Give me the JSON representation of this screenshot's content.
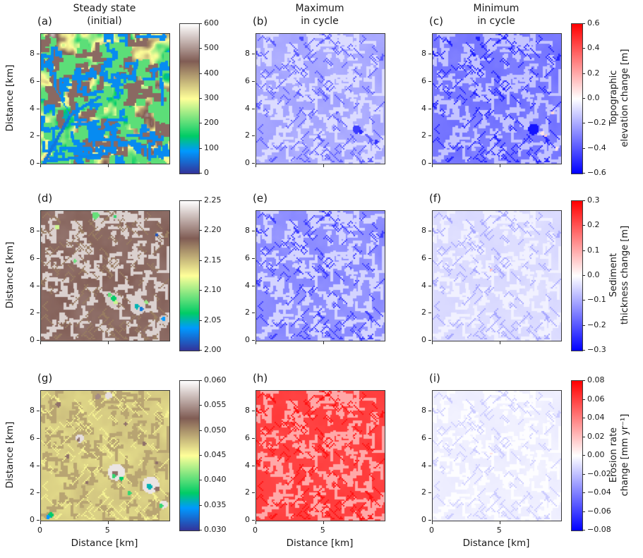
{
  "figure": {
    "background": "#ffffff",
    "column_titles": [
      [
        "Steady state",
        "(initial)"
      ],
      [
        "Maximum",
        "in cycle"
      ],
      [
        "Minimum",
        "in cycle"
      ]
    ],
    "text_color": "#1a1a1a"
  },
  "chart_data": {
    "type": "heatmap",
    "grid": "3 rows x 3 columns, panels (a)-(i)",
    "x_axis": {
      "label": "Distance [km]",
      "range": [
        0,
        9.5
      ],
      "ticks": [
        0,
        5
      ]
    },
    "y_axis": {
      "label": "Distance [km]",
      "range": [
        0,
        9.5
      ],
      "ticks": [
        0,
        2,
        4,
        6,
        8
      ]
    },
    "colormaps": {
      "terrain": {
        "stops": [
          [
            0.0,
            "#333399"
          ],
          [
            0.15,
            "#0099ff"
          ],
          [
            0.25,
            "#00cc66"
          ],
          [
            0.5,
            "#ffff99"
          ],
          [
            0.75,
            "#805c54"
          ],
          [
            1.0,
            "#ffffff"
          ]
        ]
      },
      "bwr": {
        "stops": [
          [
            0.0,
            "#0000ff"
          ],
          [
            0.5,
            "#ffffff"
          ],
          [
            1.0,
            "#ff0000"
          ]
        ]
      }
    },
    "rows": [
      {
        "name": "topographic-elevation",
        "left_colorbar": {
          "colormap": "terrain",
          "min": 0,
          "max": 600,
          "tick_values": [
            600,
            500,
            400,
            300,
            200,
            100,
            0
          ],
          "tick_labels": [
            "600",
            "500",
            "400",
            "300",
            "200",
            "100",
            "0"
          ]
        },
        "right_colorbar": {
          "colormap": "bwr",
          "min": -0.6,
          "max": 0.6,
          "tick_values": [
            0.6,
            0.4,
            0.2,
            0.0,
            -0.2,
            -0.4,
            -0.6
          ],
          "tick_labels": [
            "0.6",
            "0.4",
            "0.2",
            "0.0",
            "−0.2",
            "−0.4",
            "−0.6"
          ],
          "label_lines": [
            "Topographic",
            "elevation change [m]"
          ]
        }
      },
      {
        "name": "sediment-thickness",
        "left_colorbar": {
          "colormap": "terrain",
          "min": 2.0,
          "max": 2.25,
          "tick_values": [
            2.25,
            2.2,
            2.15,
            2.1,
            2.05,
            2.0
          ],
          "tick_labels": [
            "2.25",
            "2.20",
            "2.15",
            "2.10",
            "2.05",
            "2.00"
          ]
        },
        "right_colorbar": {
          "colormap": "bwr",
          "min": -0.3,
          "max": 0.3,
          "tick_values": [
            0.3,
            0.2,
            0.1,
            0.0,
            -0.1,
            -0.2,
            -0.3
          ],
          "tick_labels": [
            "0.3",
            "0.2",
            "0.1",
            "0.0",
            "−0.1",
            "−0.2",
            "−0.3"
          ],
          "label_lines": [
            "Sediment",
            "thickness change [m]"
          ]
        }
      },
      {
        "name": "erosion-rate",
        "left_colorbar": {
          "colormap": "terrain",
          "min": 0.03,
          "max": 0.06,
          "tick_values": [
            0.06,
            0.055,
            0.05,
            0.045,
            0.04,
            0.035,
            0.03
          ],
          "tick_labels": [
            "0.060",
            "0.055",
            "0.050",
            "0.045",
            "0.040",
            "0.035",
            "0.030"
          ]
        },
        "right_colorbar": {
          "colormap": "bwr",
          "min": -0.08,
          "max": 0.08,
          "tick_values": [
            0.08,
            0.06,
            0.04,
            0.02,
            0.0,
            -0.02,
            -0.04,
            -0.06,
            -0.08
          ],
          "tick_labels": [
            "0.08",
            "0.06",
            "0.04",
            "0.02",
            "0.00",
            "−0.02",
            "−0.04",
            "−0.06",
            "−0.08"
          ],
          "label_lines": [
            "Erosion rate",
            "change [mm yr⁻¹]"
          ]
        }
      }
    ],
    "panels": [
      {
        "id": "a",
        "row": 0,
        "col": 0,
        "label": "(a)",
        "colormap": "terrain",
        "description": "Steady-state (initial) elevation 0-600 m: green/yellow valleys, brown ridges, blue dendritic channels from lower-left",
        "render": {
          "style": "terrain",
          "base": 0.5,
          "range": 0.6,
          "aura": 0.34,
          "ridges": 0.77,
          "net": 0.13,
          "netCount": 55,
          "paths": [
            [
              0.02,
              0.02,
              0.22,
              0.38,
              2,
              0.1
            ],
            [
              0.22,
              0.38,
              0.45,
              0.52,
              2,
              0.12
            ],
            [
              0.02,
              0.02,
              0.5,
              0.08,
              2,
              0.12
            ],
            [
              0.22,
              0.38,
              0.1,
              0.6,
              1,
              0.14
            ]
          ],
          "spots": []
        }
      },
      {
        "id": "b",
        "row": 0,
        "col": 1,
        "label": "(b)",
        "colormap": "bwr",
        "description": "Maximum topographic elevation change in cycle, uniformly slightly negative (~-0.2 m, light blue-violet) with darker blue pockets near (7.5,2.7) km",
        "render": {
          "style": "net",
          "base": 0.33,
          "noise": 0.025,
          "net": 0.43,
          "netCount": 110,
          "specks": 0.18,
          "spots": [
            [
              0.78,
              0.27,
              3,
              0.12
            ],
            [
              0.81,
              0.25,
              1.5,
              0.08
            ],
            [
              0.93,
              0.17,
              1.5,
              0.1
            ],
            [
              0.35,
              0.97,
              1.5,
              0.15
            ],
            [
              0.62,
              0.4,
              1,
              0.17
            ],
            [
              0.63,
              0.34,
              1,
              0.17
            ]
          ]
        }
      },
      {
        "id": "c",
        "row": 0,
        "col": 2,
        "label": "(c)",
        "colormap": "bwr",
        "description": "Minimum topographic elevation change in cycle, ~-0.3 to -0.4 m (medium blue), deep-blue pocket near (7.5,2.7) km with tiny red spots",
        "render": {
          "style": "net",
          "base": 0.235,
          "noise": 0.03,
          "net": 0.385,
          "netCount": 110,
          "specks": 0.07,
          "spots": [
            [
              0.78,
              0.27,
              4,
              0.04
            ],
            [
              0.85,
              0.24,
              1.5,
              0.55
            ],
            [
              0.88,
              0.22,
              1,
              0.6
            ],
            [
              0.93,
              0.4,
              1,
              0.58
            ],
            [
              0.35,
              0.97,
              1.5,
              0.06
            ],
            [
              0.96,
              0.12,
              1.2,
              0.55
            ]
          ]
        }
      },
      {
        "id": "d",
        "row": 1,
        "col": 0,
        "label": "(d)",
        "colormap": "terrain",
        "description": "Steady-state sediment thickness ~2.18-2.22 m (brown) with near-2.25 m white channel network and sparse thin (2.0-2.1 m, blue/green) spots",
        "render": {
          "style": "net",
          "base": 0.77,
          "noise": 0.025,
          "net": 0.93,
          "netCount": 95,
          "specks": 0.7,
          "spots": [
            [
              0.55,
              0.32,
              5,
              0.92
            ],
            [
              0.56,
              0.33,
              2,
              0.25
            ],
            [
              0.58,
              0.3,
              1.5,
              0.45
            ],
            [
              0.53,
              0.36,
              1.5,
              0.35
            ],
            [
              0.75,
              0.27,
              6,
              0.93
            ],
            [
              0.74,
              0.27,
              2,
              0.2
            ],
            [
              0.78,
              0.25,
              1.5,
              0.1
            ],
            [
              0.82,
              0.3,
              1.5,
              0.4
            ],
            [
              0.95,
              0.17,
              3,
              0.92
            ],
            [
              0.95,
              0.17,
              1.5,
              0.15
            ],
            [
              0.27,
              0.62,
              3,
              0.92
            ],
            [
              0.26,
              0.62,
              1.3,
              0.35
            ],
            [
              0.42,
              0.97,
              2.5,
              0.35
            ],
            [
              0.58,
              0.96,
              2.5,
              0.92
            ],
            [
              0.57,
              0.96,
              1.2,
              0.3
            ],
            [
              0.12,
              0.88,
              1.5,
              0.45
            ],
            [
              0.9,
              0.82,
              1,
              0.05
            ]
          ]
        }
      },
      {
        "id": "e",
        "row": 1,
        "col": 1,
        "label": "(e)",
        "colormap": "bwr",
        "description": "Maximum sediment thickness change in cycle, ~-0.13 m (medium blue-violet) over whole domain",
        "render": {
          "style": "net",
          "base": 0.28,
          "noise": 0.03,
          "net": 0.415,
          "netCount": 115,
          "specks": 0.12,
          "spots": []
        }
      },
      {
        "id": "f",
        "row": 1,
        "col": 2,
        "label": "(f)",
        "colormap": "bwr",
        "description": "Minimum sediment thickness change in cycle, ~-0.04 m (very light lavender), one tiny red dot near (4.3,5.2) km",
        "render": {
          "style": "net",
          "base": 0.43,
          "noise": 0.015,
          "net": 0.472,
          "netCount": 100,
          "specks": 0.33,
          "spots": [
            [
              0.45,
              0.55,
              0.8,
              0.62
            ]
          ]
        }
      },
      {
        "id": "g",
        "row": 1,
        "col": 0,
        "label": "(g)",
        "colormap": "terrain",
        "row_override": 2,
        "description": "Steady-state erosion rate ~0.048 mm/yr (olive-tan) with brown/white high-rate patches and few blue-green low spots",
        "render": {
          "style": "net",
          "base": 0.575,
          "noise": 0.035,
          "net": 0.64,
          "netCount": 90,
          "specks": 0.52,
          "spots": [
            [
              0.58,
              0.38,
              6,
              0.96
            ],
            [
              0.57,
              0.37,
              2,
              0.78
            ],
            [
              0.56,
              0.35,
              1.5,
              0.3
            ],
            [
              0.62,
              0.33,
              1.5,
              0.25
            ],
            [
              0.85,
              0.28,
              6,
              0.96
            ],
            [
              0.84,
              0.27,
              2,
              0.2
            ],
            [
              0.9,
              0.25,
              2,
              0.78
            ],
            [
              0.95,
              0.13,
              3,
              0.96
            ],
            [
              0.93,
              0.12,
              1.5,
              0.3
            ],
            [
              0.3,
              0.64,
              3,
              0.95
            ],
            [
              0.29,
              0.63,
              1.2,
              0.78
            ],
            [
              0.52,
              0.97,
              2.5,
              0.95
            ],
            [
              0.44,
              0.96,
              2,
              0.82
            ],
            [
              0.13,
              0.9,
              2,
              0.78
            ],
            [
              0.07,
              0.05,
              2,
              0.25
            ],
            [
              0.05,
              0.03,
              1.5,
              0.15
            ],
            [
              0.68,
              0.22,
              1.5,
              0.3
            ],
            [
              0.2,
              0.5,
              1.5,
              0.78
            ],
            [
              0.8,
              0.6,
              1.5,
              0.78
            ],
            [
              0.35,
              0.3,
              1.2,
              0.78
            ],
            [
              0.65,
              0.75,
              1.2,
              0.78
            ],
            [
              0.9,
              0.45,
              1,
              0.78
            ]
          ]
        }
      },
      {
        "id": "h",
        "row": 2,
        "col": 1,
        "label": "(h)",
        "colormap": "bwr",
        "description": "Maximum erosion-rate change in cycle, strongly positive ~+0.06 mm/yr (red) with pink channel network",
        "render": {
          "style": "net",
          "base": 0.875,
          "noise": 0.02,
          "net": 0.67,
          "netCount": 110,
          "specks": 0.965,
          "spots": []
        }
      },
      {
        "id": "i",
        "row": 2,
        "col": 2,
        "label": "(i)",
        "colormap": "bwr",
        "description": "Minimum erosion-rate change in cycle, near zero / faintly negative (near-white with pale blue network)",
        "render": {
          "style": "net",
          "base": 0.468,
          "noise": 0.012,
          "net": 0.496,
          "netCount": 100,
          "specks": 0.4,
          "spots": [
            [
              0.45,
              0.52,
              0.7,
              0.56
            ]
          ]
        }
      }
    ]
  }
}
